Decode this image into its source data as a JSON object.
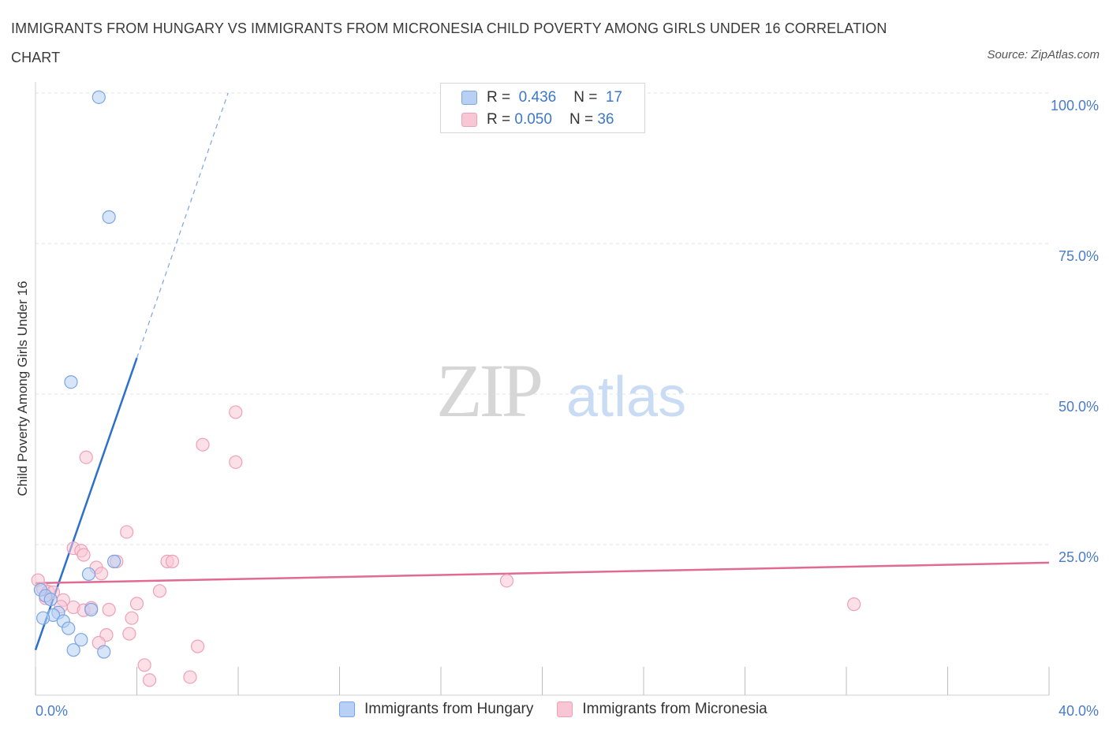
{
  "title": "IMMIGRANTS FROM HUNGARY VS IMMIGRANTS FROM MICRONESIA CHILD POVERTY AMONG GIRLS UNDER 16 CORRELATION CHART",
  "source": "Source: ZipAtlas.com",
  "watermark": {
    "zip": "ZIP",
    "atlas": "atlas"
  },
  "legend": {
    "rows": [
      {
        "r_label": "R =",
        "r_value": "0.436",
        "n_label": "N =",
        "n_value": "17"
      },
      {
        "r_label": "R =",
        "r_value": "0.050",
        "n_label": "N =",
        "n_value": "36"
      }
    ]
  },
  "colors": {
    "hungary_fill": "#b7d0f4",
    "hungary_stroke": "#7aa5e3",
    "hungary_line": "#2f6fcc",
    "micronesia_fill": "#f9c6d5",
    "micronesia_stroke": "#eea0b8",
    "micronesia_line": "#e06a93",
    "grid": "#dde3ec",
    "axis_text": "#4a7cc9"
  },
  "chart_data": {
    "type": "scatter",
    "title": "IMMIGRANTS FROM HUNGARY VS IMMIGRANTS FROM MICRONESIA CHILD POVERTY AMONG GIRLS UNDER 16 CORRELATION CHART",
    "xlabel": "",
    "ylabel": "Child Poverty Among Girls Under 16",
    "xlim": [
      0,
      40
    ],
    "ylim": [
      0,
      100
    ],
    "x_tick_labels": [
      "0.0%",
      "40.0%"
    ],
    "y_tick_labels": [
      "25.0%",
      "50.0%",
      "75.0%",
      "100.0%"
    ],
    "y_ticks": [
      25,
      50,
      75,
      100
    ],
    "series": [
      {
        "name": "Immigrants from Hungary",
        "R": 0.436,
        "N": 17,
        "points": [
          [
            2.5,
            99.3
          ],
          [
            2.9,
            79.4
          ],
          [
            1.4,
            52.0
          ],
          [
            3.1,
            22.2
          ],
          [
            2.1,
            20.1
          ],
          [
            0.2,
            17.5
          ],
          [
            0.4,
            16.5
          ],
          [
            0.6,
            15.9
          ],
          [
            0.9,
            13.7
          ],
          [
            0.7,
            13.3
          ],
          [
            2.2,
            14.2
          ],
          [
            0.3,
            12.8
          ],
          [
            1.1,
            12.3
          ],
          [
            1.3,
            11.1
          ],
          [
            1.8,
            9.2
          ],
          [
            1.5,
            7.5
          ],
          [
            2.7,
            7.2
          ]
        ],
        "trend": {
          "x0": 0,
          "y0": 7.5,
          "x1": 4.0,
          "y1": 56.0,
          "dash_x1": 7.6,
          "dash_y1": 100
        }
      },
      {
        "name": "Immigrants from Micronesia",
        "R": 0.05,
        "N": 36,
        "points": [
          [
            7.9,
            47.0
          ],
          [
            6.6,
            41.6
          ],
          [
            7.9,
            38.7
          ],
          [
            2.0,
            39.5
          ],
          [
            3.6,
            27.1
          ],
          [
            1.5,
            24.4
          ],
          [
            1.8,
            24.0
          ],
          [
            1.9,
            23.3
          ],
          [
            3.2,
            22.2
          ],
          [
            5.2,
            22.2
          ],
          [
            5.4,
            22.2
          ],
          [
            2.4,
            21.2
          ],
          [
            2.6,
            20.2
          ],
          [
            0.1,
            19.1
          ],
          [
            0.3,
            17.6
          ],
          [
            0.5,
            17.2
          ],
          [
            0.7,
            17.1
          ],
          [
            0.4,
            16.1
          ],
          [
            1.1,
            15.8
          ],
          [
            1.5,
            14.6
          ],
          [
            1.9,
            14.1
          ],
          [
            2.2,
            14.5
          ],
          [
            2.9,
            14.2
          ],
          [
            4.0,
            15.2
          ],
          [
            4.9,
            17.3
          ],
          [
            3.8,
            12.8
          ],
          [
            1.0,
            14.7
          ],
          [
            2.8,
            10.0
          ],
          [
            3.7,
            10.2
          ],
          [
            2.5,
            8.7
          ],
          [
            6.4,
            8.1
          ],
          [
            18.6,
            19.0
          ],
          [
            32.3,
            15.1
          ],
          [
            4.3,
            5.0
          ],
          [
            4.5,
            2.5
          ],
          [
            6.1,
            3.0
          ]
        ],
        "trend": {
          "x0": 0,
          "y0": 18.6,
          "x1": 40,
          "y1": 22.0
        }
      }
    ]
  },
  "bottom_legend": [
    "Immigrants from Hungary",
    "Immigrants from Micronesia"
  ]
}
